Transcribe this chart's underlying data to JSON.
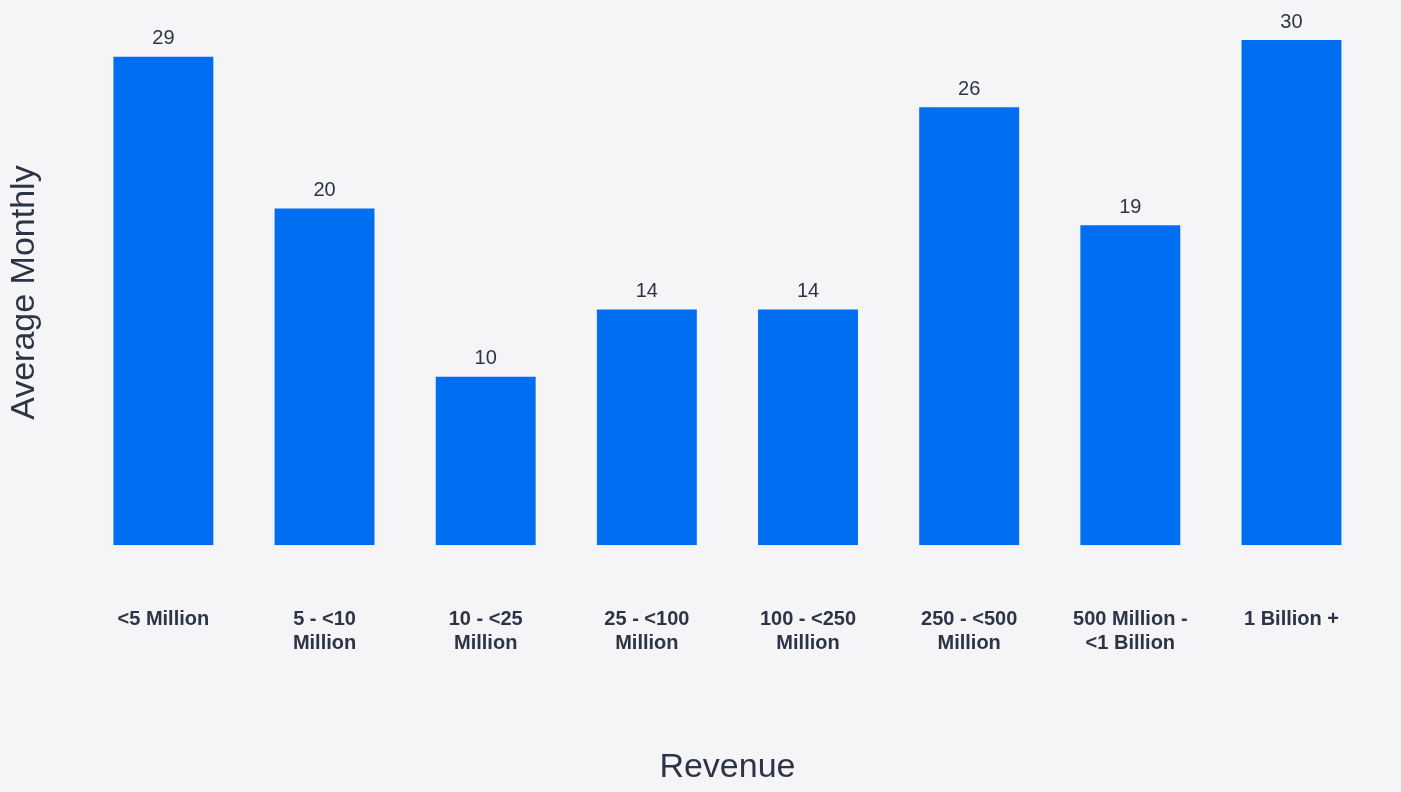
{
  "chart_data": {
    "type": "bar",
    "xlabel": "Revenue",
    "ylabel": "Average Monthly",
    "categories": [
      "<5 Million",
      "5 - <10 Million",
      "10 - <25 Million",
      "25 - <100 Million",
      "100 - <250 Million",
      "250 - <500 Million",
      "500 Million - <1 Billion",
      "1 Billion +"
    ],
    "values": [
      29,
      20,
      10,
      14,
      14,
      26,
      19,
      30
    ],
    "color": "#006ef0",
    "data_labels": true,
    "grid": false,
    "legend": false
  }
}
